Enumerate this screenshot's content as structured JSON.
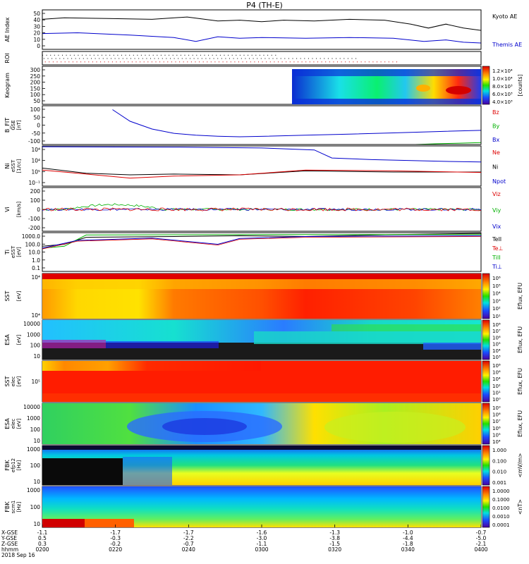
{
  "title": "P4 (TH-E)",
  "colors": {
    "black": "#000000",
    "blue": "#0000cc",
    "green": "#00b000",
    "red": "#dd0000"
  },
  "chart_data": [
    {
      "type": "line",
      "id": "ae",
      "ylabel": "AE Index",
      "yticks": [
        "50",
        "40",
        "30",
        "20",
        "10",
        "0"
      ],
      "ylim": [
        0,
        50
      ],
      "legend": [
        {
          "name": "Kyoto AE",
          "color": "black"
        },
        {
          "name": "Themis AE",
          "color": "blue"
        }
      ],
      "series": [
        {
          "name": "Kyoto AE",
          "color": "black",
          "x": [
            0,
            0.05,
            0.15,
            0.25,
            0.33,
            0.4,
            0.45,
            0.5,
            0.55,
            0.62,
            0.7,
            0.78,
            0.84,
            0.88,
            0.92,
            0.96,
            1
          ],
          "values": [
            38,
            40,
            39,
            38,
            41,
            36,
            37,
            35,
            37,
            36,
            38,
            37,
            32,
            27,
            32,
            27,
            24
          ]
        },
        {
          "name": "Themis AE",
          "color": "blue",
          "x": [
            0,
            0.08,
            0.2,
            0.3,
            0.35,
            0.4,
            0.45,
            0.5,
            0.6,
            0.7,
            0.8,
            0.87,
            0.92,
            0.96,
            1
          ],
          "values": [
            20,
            21,
            18,
            15,
            10,
            16,
            14,
            15,
            14,
            15,
            14,
            10,
            12,
            9,
            8
          ]
        }
      ]
    },
    {
      "type": "line",
      "id": "roi",
      "ylabel": "ROI"
    },
    {
      "type": "heatmap",
      "id": "keo",
      "ylabel": "Keogram",
      "yticks": [
        "300",
        "250",
        "200",
        "150",
        "100",
        "50"
      ],
      "colorbar": {
        "label": "[counts]",
        "ticks": [
          "1.2×10⁴",
          "1.0×10⁴",
          "8.0×10³",
          "6.0×10³",
          "4.0×10³"
        ]
      }
    },
    {
      "type": "line",
      "id": "bfit",
      "ylabel": "B_FIT",
      "ylabel2": "GSE",
      "ylabel3": "[nT]",
      "yticks": [
        "100",
        "50",
        "0",
        "-50",
        "-100"
      ],
      "ylim": [
        -100,
        100
      ],
      "legend": [
        {
          "name": "Bz",
          "color": "red"
        },
        {
          "name": "By",
          "color": "green"
        },
        {
          "name": "Bx",
          "color": "blue"
        }
      ],
      "series": [
        {
          "name": "Bx",
          "color": "blue",
          "x": [
            0.16,
            0.2,
            0.25,
            0.3,
            0.35,
            0.4,
            0.45,
            0.5,
            0.6,
            0.7,
            0.8,
            0.9,
            1
          ],
          "values": [
            80,
            20,
            -20,
            -42,
            -52,
            -57,
            -60,
            -58,
            -52,
            -46,
            -40,
            -33,
            -27
          ]
        },
        {
          "name": "By",
          "color": "green",
          "x": [
            0.85,
            0.9,
            0.95,
            1
          ],
          "values": [
            -100,
            -96,
            -93,
            -90
          ]
        }
      ]
    },
    {
      "type": "line",
      "id": "ni",
      "ylabel": "Ni",
      "ylabel2": "eSST",
      "ylabel3": "[1/cc]",
      "yticks": [
        "10⁴",
        "10⁴",
        "10⁵",
        "10⁻¹"
      ],
      "legend": [
        {
          "name": "Ne",
          "color": "red"
        },
        {
          "name": "Ni",
          "color": "black"
        },
        {
          "name": "Npot",
          "color": "blue"
        }
      ]
    },
    {
      "type": "line",
      "id": "vi",
      "ylabel": "Vi",
      "ylabel3": "[km/s]",
      "yticks": [
        "200",
        "100",
        "0",
        "-100",
        "-200"
      ],
      "ylim": [
        -250,
        250
      ],
      "legend": [
        {
          "name": "Viz",
          "color": "red"
        },
        {
          "name": "Viy",
          "color": "green"
        },
        {
          "name": "Vix",
          "color": "blue"
        }
      ]
    },
    {
      "type": "line",
      "id": "ti",
      "ylabel": "Ti",
      "ylabel2": "eSST",
      "ylabel3": "[eV]",
      "yticks": [
        "1000.0",
        "100.0",
        "10.0",
        "1.0",
        "0.1"
      ],
      "legend": [
        {
          "name": "TeII",
          "color": "black"
        },
        {
          "name": "Te⊥",
          "color": "red"
        },
        {
          "name": "TiII",
          "color": "green"
        },
        {
          "name": "Ti⊥",
          "color": "blue"
        }
      ]
    },
    {
      "type": "heatmap",
      "id": "sst_i",
      "ylabel": "SST",
      "ylabel3": "[eV]",
      "yticks": [
        "10⁴",
        "10⁴"
      ],
      "colorbar": {
        "label": "Eflux, EFU",
        "ticks": [
          "10⁶",
          "10⁵",
          "10⁴",
          "10³",
          "10²",
          "10¹"
        ]
      }
    },
    {
      "type": "heatmap",
      "id": "esa_i",
      "ylabel": "ESA",
      "ylabel3": "[eV]",
      "yticks": [
        "10000",
        "1000",
        "100",
        "10"
      ],
      "colorbar": {
        "label": "Eflux, EFU",
        "ticks": [
          "10⁸",
          "10⁷",
          "10⁶",
          "10⁵",
          "10⁴",
          "10³"
        ]
      }
    },
    {
      "type": "heatmap",
      "id": "sst_e",
      "ylabel": "SST",
      "ylabel2": "elec",
      "ylabel3": "[eV]",
      "yticks": [
        "10⁵"
      ],
      "colorbar": {
        "label": "Eflux, EFU",
        "ticks": [
          "10⁸",
          "10⁶",
          "10⁴",
          "10²",
          "10¹",
          "10⁰"
        ]
      }
    },
    {
      "type": "heatmap",
      "id": "esa_e",
      "ylabel": "ESA",
      "ylabel2": "elec",
      "ylabel3": "[eV]",
      "yticks": [
        "10000",
        "1000",
        "100",
        "10"
      ],
      "colorbar": {
        "label": "Eflux, EFU",
        "ticks": [
          "10⁹",
          "10⁸",
          "10⁷",
          "10⁶",
          "10⁵",
          "10⁴"
        ]
      }
    },
    {
      "type": "heatmap",
      "id": "fbk_e",
      "ylabel": "FBK",
      "ylabel2": "efp12",
      "ylabel3": "[Hz]",
      "yticks": [
        "1000",
        "100",
        "10"
      ],
      "colorbar": {
        "label": "<mV/m>",
        "ticks": [
          "1.000",
          "0.100",
          "0.010",
          "0.001"
        ]
      }
    },
    {
      "type": "heatmap",
      "id": "fbk_b",
      "ylabel": "FBK",
      "ylabel2": "scm1",
      "ylabel3": "[Hz]",
      "yticks": [
        "1000",
        "100",
        "10"
      ],
      "colorbar": {
        "label": "<nT>",
        "ticks": [
          "1.0000",
          "0.1000",
          "0.0100",
          "0.0010",
          "0.0001"
        ]
      }
    }
  ],
  "xaxis": {
    "row_labels": [
      "X-GSE",
      "Y-GSE",
      "Z-GSE",
      "hhmm",
      "2018 Sep 16"
    ],
    "ticks": [
      {
        "x": "-1.1",
        "y": "0.5",
        "z": "0.3",
        "t": "0200"
      },
      {
        "x": "-1.7",
        "y": "-0.3",
        "z": "-0.2",
        "t": "0220"
      },
      {
        "x": "-1.7",
        "y": "-2.2",
        "z": "-0.7",
        "t": "0240"
      },
      {
        "x": "-1.6",
        "y": "-3.0",
        "z": "-1.1",
        "t": "0300"
      },
      {
        "x": "-1.3",
        "y": "-3.8",
        "z": "-1.5",
        "t": "0320"
      },
      {
        "x": "-1.0",
        "y": "-4.4",
        "z": "-1.8",
        "t": "0340"
      },
      {
        "x": "-0.7",
        "y": "-5.0",
        "z": "-2.1",
        "t": "0400"
      }
    ]
  }
}
